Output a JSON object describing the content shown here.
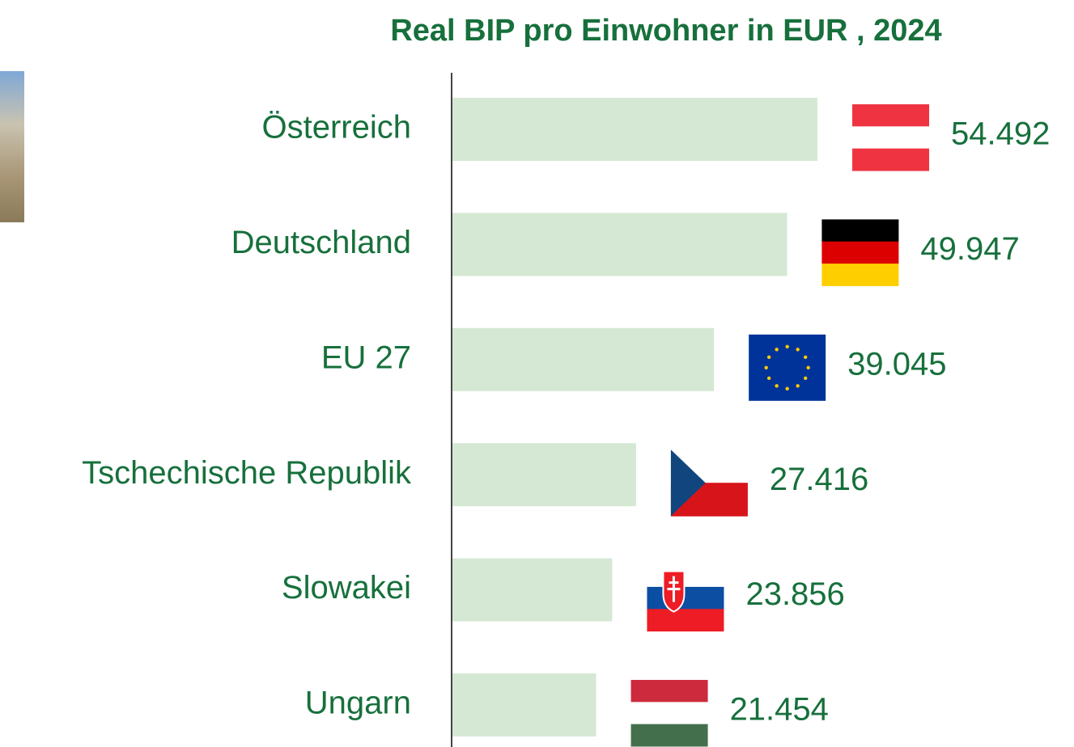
{
  "chart_data": {
    "type": "bar",
    "orientation": "horizontal",
    "title": "Real BIP pro Einwohner in EUR , 2024",
    "categories": [
      "Österreich",
      "Deutschland",
      "EU 27",
      "Tschechische Republik",
      "Slowakei",
      "Ungarn"
    ],
    "values": [
      54492,
      49947,
      39045,
      27416,
      23856,
      21454
    ],
    "value_labels": [
      "54.492",
      "49.947",
      "39.045",
      "27.416",
      "23.856",
      "21.454"
    ],
    "color": "#d5e8d4",
    "xlim": [
      0,
      65000
    ]
  }
}
